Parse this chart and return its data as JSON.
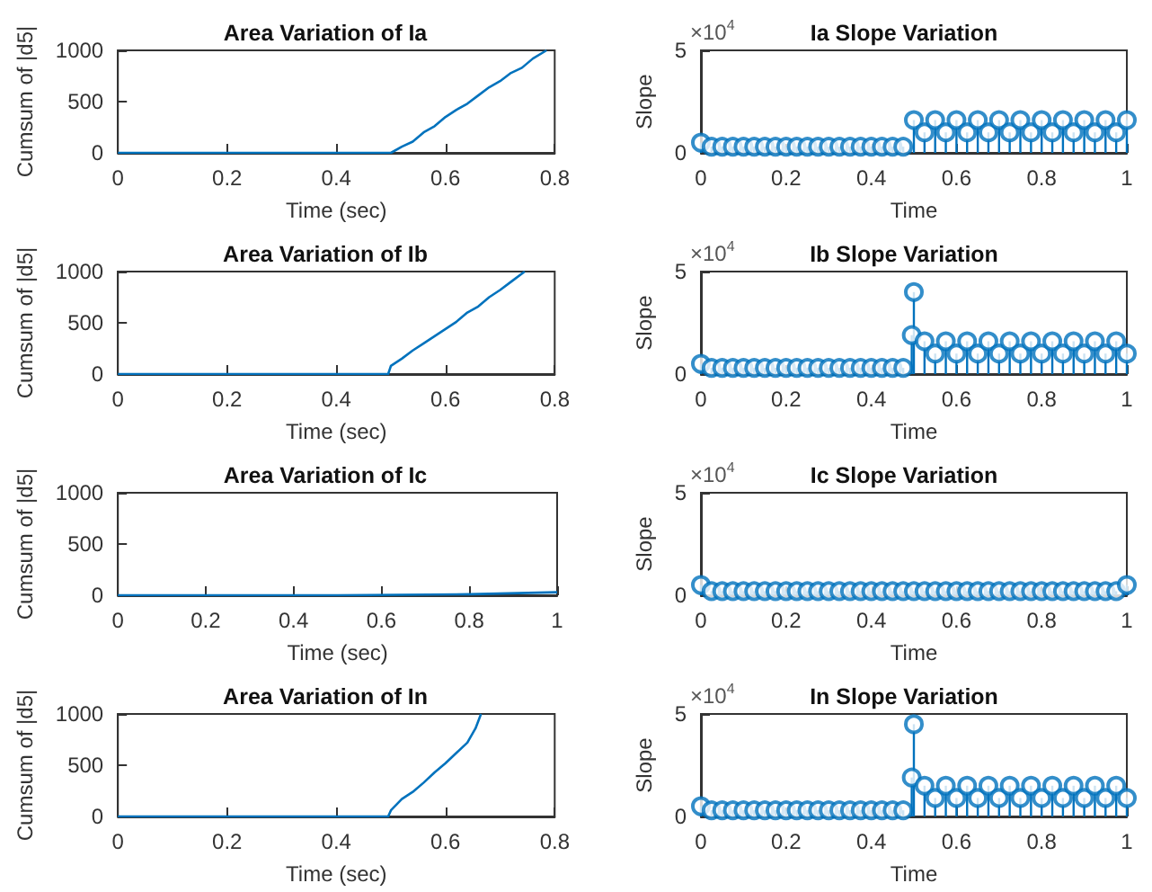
{
  "chart_data": [
    {
      "type": "line",
      "title": "Area Variation of Ia",
      "xlabel": "Time (sec)",
      "ylabel": "Cumsum of |d5|",
      "marker": "none",
      "color": "#0072bd",
      "x": [
        0,
        0.1,
        0.2,
        0.3,
        0.4,
        0.5,
        0.52,
        0.54,
        0.56,
        0.58,
        0.6,
        0.62,
        0.64,
        0.66,
        0.68,
        0.7,
        0.72,
        0.74,
        0.76,
        0.785
      ],
      "values": [
        0,
        0,
        0,
        0,
        0,
        0,
        60,
        110,
        200,
        260,
        350,
        420,
        480,
        560,
        640,
        700,
        780,
        830,
        920,
        1000
      ],
      "xlim": [
        0,
        0.8
      ],
      "xticks": [
        0,
        0.2,
        0.4,
        0.6,
        0.8
      ],
      "ylim": [
        0,
        1000
      ],
      "yticks": [
        0,
        500,
        1000
      ]
    },
    {
      "type": "lollipop",
      "title": "Ia Slope Variation",
      "xlabel": "Time",
      "ylabel": "Slope",
      "annotations": [
        "×10$^{4}$"
      ],
      "marker": "circle",
      "color": "#0072bd",
      "x": [
        0,
        0.025,
        0.05,
        0.075,
        0.1,
        0.125,
        0.15,
        0.175,
        0.2,
        0.225,
        0.25,
        0.275,
        0.3,
        0.325,
        0.35,
        0.375,
        0.4,
        0.425,
        0.45,
        0.475,
        0.5,
        0.525,
        0.55,
        0.575,
        0.6,
        0.625,
        0.65,
        0.675,
        0.7,
        0.725,
        0.75,
        0.775,
        0.8,
        0.825,
        0.85,
        0.875,
        0.9,
        0.925,
        0.95,
        0.975,
        1
      ],
      "values": [
        0.5,
        0.3,
        0.3,
        0.3,
        0.3,
        0.3,
        0.3,
        0.3,
        0.3,
        0.3,
        0.3,
        0.3,
        0.3,
        0.3,
        0.3,
        0.3,
        0.3,
        0.3,
        0.3,
        0.3,
        1.6,
        1,
        1.6,
        1,
        1.6,
        1,
        1.6,
        1,
        1.6,
        1,
        1.6,
        1,
        1.6,
        1,
        1.6,
        1,
        1.6,
        1,
        1.6,
        1,
        1.6
      ],
      "xlim": [
        0,
        1
      ],
      "xticks": [
        0,
        0.2,
        0.4,
        0.6,
        0.8,
        1
      ],
      "ylim": [
        0,
        5
      ],
      "yticks": [
        0,
        5
      ]
    },
    {
      "type": "line",
      "title": "Area Variation of Ib",
      "xlabel": "Time (sec)",
      "ylabel": "Cumsum of |d5|",
      "marker": "none",
      "color": "#0072bd",
      "x": [
        0,
        0.1,
        0.2,
        0.3,
        0.4,
        0.495,
        0.5,
        0.52,
        0.54,
        0.56,
        0.58,
        0.6,
        0.62,
        0.64,
        0.66,
        0.68,
        0.7,
        0.72,
        0.745
      ],
      "values": [
        0,
        0,
        0,
        0,
        0,
        0,
        80,
        150,
        230,
        300,
        370,
        440,
        510,
        600,
        660,
        750,
        820,
        900,
        1000
      ],
      "xlim": [
        0,
        0.8
      ],
      "xticks": [
        0,
        0.2,
        0.4,
        0.6,
        0.8
      ],
      "ylim": [
        0,
        1000
      ],
      "yticks": [
        0,
        500,
        1000
      ]
    },
    {
      "type": "lollipop",
      "title": "Ib Slope Variation",
      "xlabel": "Time",
      "ylabel": "Slope",
      "annotations": [
        "×10$^{4}$"
      ],
      "marker": "circle",
      "color": "#0072bd",
      "x": [
        0,
        0.025,
        0.05,
        0.075,
        0.1,
        0.125,
        0.15,
        0.175,
        0.2,
        0.225,
        0.25,
        0.275,
        0.3,
        0.325,
        0.35,
        0.375,
        0.4,
        0.425,
        0.45,
        0.475,
        0.495,
        0.5,
        0.525,
        0.55,
        0.575,
        0.6,
        0.625,
        0.65,
        0.675,
        0.7,
        0.725,
        0.75,
        0.775,
        0.8,
        0.825,
        0.85,
        0.875,
        0.9,
        0.925,
        0.95,
        0.975,
        1
      ],
      "values": [
        0.5,
        0.3,
        0.3,
        0.3,
        0.3,
        0.3,
        0.3,
        0.3,
        0.3,
        0.3,
        0.3,
        0.3,
        0.3,
        0.3,
        0.3,
        0.3,
        0.3,
        0.3,
        0.3,
        0.3,
        1.9,
        4,
        1.6,
        1,
        1.6,
        1,
        1.6,
        1,
        1.6,
        1,
        1.6,
        1,
        1.6,
        1,
        1.6,
        1,
        1.6,
        1,
        1.6,
        1,
        1.6,
        1
      ],
      "xlim": [
        0,
        1
      ],
      "xticks": [
        0,
        0.2,
        0.4,
        0.6,
        0.8,
        1
      ],
      "ylim": [
        0,
        5
      ],
      "yticks": [
        0,
        5
      ]
    },
    {
      "type": "line",
      "title": "Area Variation of Ic",
      "xlabel": "Time (sec)",
      "ylabel": "Cumsum of |d5|",
      "marker": "none",
      "color": "#0072bd",
      "x": [
        0,
        0.2,
        0.5,
        0.8,
        1
      ],
      "values": [
        0,
        0,
        0,
        10,
        30
      ],
      "xlim": [
        0,
        1
      ],
      "xticks": [
        0,
        0.2,
        0.4,
        0.6,
        0.8,
        1
      ],
      "ylim": [
        0,
        1000
      ],
      "yticks": [
        0,
        500,
        1000
      ]
    },
    {
      "type": "lollipop",
      "title": "Ic Slope Variation",
      "xlabel": "Time",
      "ylabel": "Slope",
      "annotations": [
        "×10$^{4}$"
      ],
      "marker": "circle",
      "color": "#0072bd",
      "x": [
        0,
        0.025,
        0.05,
        0.075,
        0.1,
        0.125,
        0.15,
        0.175,
        0.2,
        0.225,
        0.25,
        0.275,
        0.3,
        0.325,
        0.35,
        0.375,
        0.4,
        0.425,
        0.45,
        0.475,
        0.5,
        0.525,
        0.55,
        0.575,
        0.6,
        0.625,
        0.65,
        0.675,
        0.7,
        0.725,
        0.75,
        0.775,
        0.8,
        0.825,
        0.85,
        0.875,
        0.9,
        0.925,
        0.95,
        0.975,
        1
      ],
      "values": [
        0.5,
        0.2,
        0.2,
        0.2,
        0.2,
        0.2,
        0.2,
        0.2,
        0.2,
        0.2,
        0.2,
        0.2,
        0.2,
        0.2,
        0.2,
        0.2,
        0.2,
        0.2,
        0.2,
        0.2,
        0.2,
        0.2,
        0.2,
        0.2,
        0.2,
        0.2,
        0.2,
        0.2,
        0.2,
        0.2,
        0.2,
        0.2,
        0.2,
        0.2,
        0.2,
        0.2,
        0.2,
        0.2,
        0.2,
        0.2,
        0.5
      ],
      "xlim": [
        0,
        1
      ],
      "xticks": [
        0,
        0.2,
        0.4,
        0.6,
        0.8,
        1
      ],
      "ylim": [
        0,
        5
      ],
      "yticks": [
        0,
        5
      ]
    },
    {
      "type": "line",
      "title": "Area Variation of In",
      "xlabel": "Time (sec)",
      "ylabel": "Cumsum of |d5|",
      "marker": "none",
      "color": "#0072bd",
      "x": [
        0,
        0.1,
        0.2,
        0.3,
        0.4,
        0.495,
        0.5,
        0.52,
        0.54,
        0.56,
        0.58,
        0.6,
        0.62,
        0.64,
        0.655,
        0.665
      ],
      "values": [
        0,
        0,
        0,
        0,
        0,
        0,
        60,
        170,
        240,
        330,
        430,
        520,
        620,
        720,
        860,
        1000
      ],
      "xlim": [
        0,
        0.8
      ],
      "xticks": [
        0,
        0.2,
        0.4,
        0.6,
        0.8
      ],
      "ylim": [
        0,
        1000
      ],
      "yticks": [
        0,
        500,
        1000
      ]
    },
    {
      "type": "lollipop",
      "title": "In Slope Variation",
      "xlabel": "Time",
      "ylabel": "Slope",
      "annotations": [
        "×10$^{4}$"
      ],
      "marker": "circle",
      "color": "#0072bd",
      "x": [
        0,
        0.025,
        0.05,
        0.075,
        0.1,
        0.125,
        0.15,
        0.175,
        0.2,
        0.225,
        0.25,
        0.275,
        0.3,
        0.325,
        0.35,
        0.375,
        0.4,
        0.425,
        0.45,
        0.475,
        0.495,
        0.5,
        0.525,
        0.55,
        0.575,
        0.6,
        0.625,
        0.65,
        0.675,
        0.7,
        0.725,
        0.75,
        0.775,
        0.8,
        0.825,
        0.85,
        0.875,
        0.9,
        0.925,
        0.95,
        0.975,
        1
      ],
      "values": [
        0.5,
        0.3,
        0.3,
        0.3,
        0.3,
        0.3,
        0.3,
        0.3,
        0.3,
        0.3,
        0.3,
        0.3,
        0.3,
        0.3,
        0.3,
        0.3,
        0.3,
        0.3,
        0.3,
        0.3,
        1.9,
        4.5,
        1.5,
        0.9,
        1.5,
        0.9,
        1.5,
        0.9,
        1.5,
        0.9,
        1.5,
        0.9,
        1.5,
        0.9,
        1.5,
        0.9,
        1.5,
        0.9,
        1.5,
        0.9,
        1.5,
        0.9
      ],
      "xlim": [
        0,
        1
      ],
      "xticks": [
        0,
        0.2,
        0.4,
        0.6,
        0.8,
        1
      ],
      "ylim": [
        0,
        5
      ],
      "yticks": [
        0,
        5
      ]
    }
  ]
}
